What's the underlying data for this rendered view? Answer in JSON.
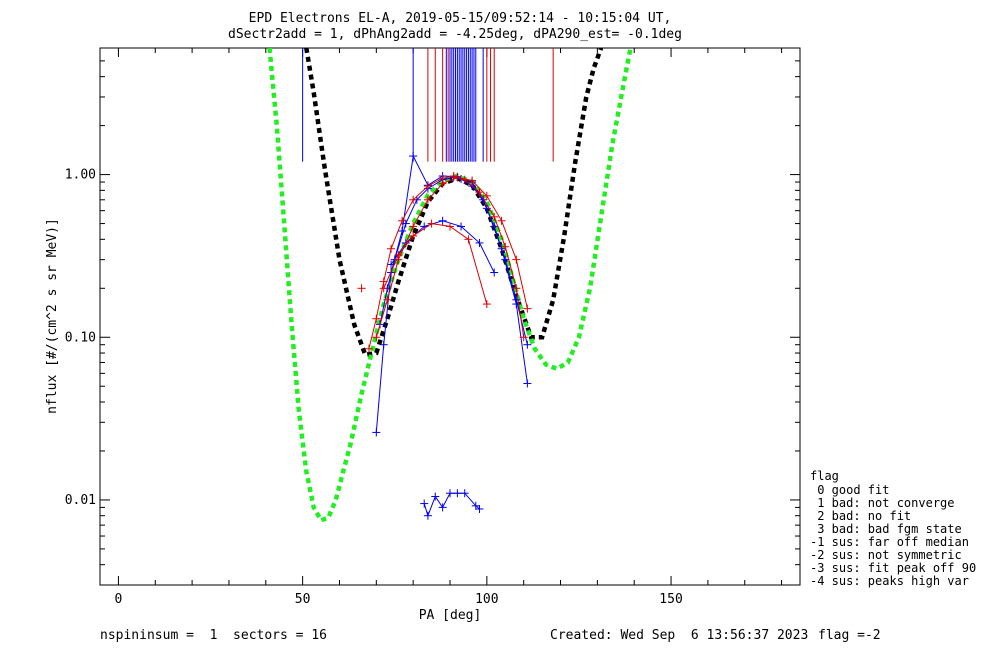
{
  "header": {
    "title_line1": "EPD Electrons EL-A, 2019-05-15/09:52:14 - 10:15:04 UT,",
    "title_line2": "dSectr2add = 1, dPhAng2add = -4.25deg, dPA290_est=  -0.1deg"
  },
  "footer": {
    "left": "nspininsum =  1  sectors = 16",
    "created": "Created: Wed Sep  6 13:56:37 2023",
    "flag": "flag =-2"
  },
  "legend": {
    "title": "flag",
    "items": [
      " 0 good fit",
      " 1 bad: not converge",
      " 2 bad: no fit",
      " 3 bad: bad fgm state",
      "-1 sus: far off median",
      "-2 sus: not symmetric",
      "-3 sus: fit peak off 90",
      "-4 sus: peaks high var"
    ]
  },
  "colors": {
    "red_series": "#dd0000",
    "blue_series": "#0000ee",
    "black_fit": "#000000",
    "green_fit": "#22ee22"
  },
  "chart_data": {
    "type": "line",
    "xlabel": "PA [deg]",
    "ylabel": "nflux [#/(cm^2 s sr MeV)]",
    "xlim": [
      -5,
      185
    ],
    "ylim": [
      0.003,
      6.0
    ],
    "yscale": "log",
    "xticks": [
      0,
      50,
      100,
      150
    ],
    "yticks": [
      0.01,
      0.1,
      1.0
    ],
    "ytick_labels": [
      "0.01",
      "0.10",
      "1.00"
    ],
    "series": [
      {
        "color": "#000000",
        "style": "dashed-thick",
        "x": [
          51,
          53,
          56,
          60,
          64,
          67,
          70,
          73,
          76,
          80,
          84,
          88,
          92,
          96,
          100,
          104,
          108,
          112,
          115,
          118,
          121,
          124,
          127,
          129,
          131
        ],
        "y": [
          6.0,
          3.2,
          1.1,
          0.3,
          0.12,
          0.078,
          0.08,
          0.13,
          0.22,
          0.42,
          0.68,
          0.88,
          0.95,
          0.86,
          0.62,
          0.35,
          0.18,
          0.1,
          0.1,
          0.17,
          0.42,
          1.2,
          3.0,
          4.5,
          6.0
        ]
      },
      {
        "color": "#22ee22",
        "style": "dashed-thick",
        "x": [
          41,
          43,
          45,
          47,
          49,
          51,
          53,
          55,
          57,
          59,
          61,
          63,
          66,
          69,
          72,
          76,
          80,
          84,
          88,
          92,
          96,
          100,
          104,
          107,
          110,
          113,
          116,
          119,
          122,
          125,
          128,
          131,
          134,
          137,
          139
        ],
        "y": [
          6.0,
          2.0,
          0.5,
          0.12,
          0.035,
          0.015,
          0.009,
          0.0075,
          0.0078,
          0.01,
          0.015,
          0.022,
          0.045,
          0.085,
          0.16,
          0.3,
          0.5,
          0.75,
          0.92,
          0.98,
          0.9,
          0.68,
          0.4,
          0.23,
          0.13,
          0.085,
          0.068,
          0.064,
          0.07,
          0.1,
          0.2,
          0.55,
          1.5,
          3.5,
          6.0
        ]
      },
      {
        "color": "#0000ee",
        "style": "line-plus",
        "x": [
          83,
          84,
          86,
          88,
          90,
          92,
          94,
          97,
          98
        ],
        "y": [
          0.0095,
          0.008,
          0.0105,
          0.009,
          0.011,
          0.011,
          0.011,
          0.0092,
          0.0088
        ]
      },
      {
        "color": "#0000ee",
        "style": "line-plus",
        "x": [
          70,
          72,
          74,
          77,
          80,
          84,
          88,
          92,
          96,
          100,
          104,
          108,
          111
        ],
        "y": [
          0.026,
          0.09,
          0.25,
          0.45,
          1.3,
          0.86,
          0.98,
          0.97,
          0.9,
          0.62,
          0.35,
          0.16,
          0.052
        ]
      },
      {
        "color": "#0000ee",
        "style": "line-plus",
        "x": [
          71,
          73,
          75,
          78,
          81,
          84,
          88,
          91,
          93,
          96,
          99,
          102,
          105,
          108,
          111
        ],
        "y": [
          0.12,
          0.2,
          0.3,
          0.5,
          0.7,
          0.82,
          0.93,
          0.96,
          0.94,
          0.85,
          0.7,
          0.48,
          0.3,
          0.17,
          0.09
        ]
      },
      {
        "color": "#0000ee",
        "style": "line-plus",
        "x": [
          74,
          78,
          83,
          88,
          93,
          98,
          102
        ],
        "y": [
          0.28,
          0.38,
          0.48,
          0.52,
          0.48,
          0.38,
          0.25
        ]
      },
      {
        "color": "#dd0000",
        "style": "line-plus",
        "x": [
          68,
          70,
          72,
          74,
          77,
          80,
          84,
          88,
          91,
          94,
          98,
          102,
          105,
          108,
          110
        ],
        "y": [
          0.085,
          0.13,
          0.22,
          0.35,
          0.52,
          0.7,
          0.85,
          0.95,
          0.98,
          0.93,
          0.78,
          0.55,
          0.36,
          0.2,
          0.1
        ]
      },
      {
        "color": "#dd0000",
        "style": "line-plus",
        "x": [
          72,
          76,
          80,
          85,
          90,
          95,
          100
        ],
        "y": [
          0.2,
          0.32,
          0.42,
          0.5,
          0.48,
          0.4,
          0.16
        ]
      },
      {
        "color": "#dd0000",
        "style": "line-plus",
        "x": [
          70,
          73,
          76,
          80,
          84,
          88,
          92,
          96,
          100,
          104,
          108,
          111
        ],
        "y": [
          0.1,
          0.17,
          0.3,
          0.48,
          0.7,
          0.88,
          0.96,
          0.92,
          0.74,
          0.52,
          0.3,
          0.15
        ]
      }
    ],
    "extra_markers": [
      {
        "color": "#dd0000",
        "x": 66,
        "y": 0.2
      }
    ],
    "vlines": [
      {
        "color": "#0000ee",
        "x": [
          50,
          80,
          89,
          90,
          90.5,
          91,
          91.5,
          92,
          92.5,
          93,
          93.5,
          94,
          94.5,
          95,
          95.5,
          96,
          96.5,
          97,
          99
        ]
      },
      {
        "color": "#dd0000",
        "x": [
          84,
          86,
          88,
          89.5,
          100,
          101,
          102,
          118
        ]
      }
    ]
  }
}
